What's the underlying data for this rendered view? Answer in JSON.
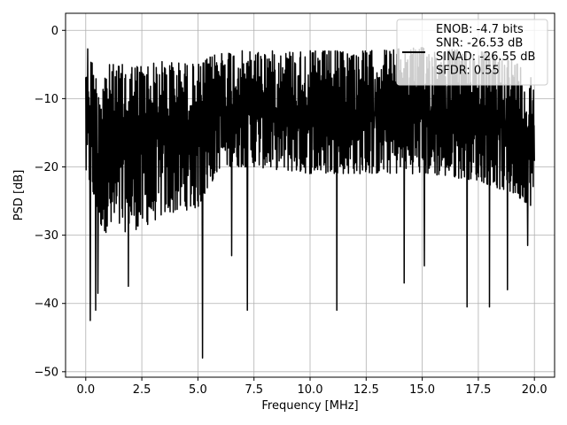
{
  "chart_data": {
    "type": "line",
    "xlabel": "Frequency [MHz]",
    "ylabel": "PSD [dB]",
    "xlim": [
      -0.9,
      20.9
    ],
    "ylim": [
      -50.8,
      2.5
    ],
    "xticks": [
      0.0,
      2.5,
      5.0,
      7.5,
      10.0,
      12.5,
      15.0,
      17.5,
      20.0
    ],
    "xtick_labels": [
      "0.0",
      "2.5",
      "5.0",
      "7.5",
      "10.0",
      "12.5",
      "15.0",
      "17.5",
      "20.0"
    ],
    "yticks": [
      0,
      -10,
      -20,
      -30,
      -40,
      -50
    ],
    "ytick_labels": [
      "0",
      "−10",
      "−20",
      "−30",
      "−40",
      "−50"
    ],
    "grid": true,
    "legend": {
      "placement": "top-right",
      "entries": [
        "ENOB: -4.7 bits",
        "SNR: -26.53 dB",
        "SINAD: -26.55 dB",
        "SFDR: 0.55"
      ]
    },
    "series": [
      {
        "color": "#000000",
        "x_range": [
          0.0,
          20.0
        ],
        "envelope": {
          "x": [
            0.0,
            0.5,
            1.0,
            2.5,
            3.5,
            5.0,
            6.0,
            7.5,
            10.0,
            12.5,
            15.0,
            17.5,
            19.0,
            20.0
          ],
          "y_high": [
            -1.0,
            -7.0,
            -5.0,
            -5.0,
            -4.5,
            -5.0,
            -3.0,
            -3.0,
            -3.0,
            -3.0,
            -2.5,
            -3.0,
            -4.0,
            -7.0
          ],
          "y_low": [
            -22.0,
            -28.0,
            -30.0,
            -29.0,
            -27.0,
            -26.0,
            -20.0,
            -20.0,
            -21.0,
            -21.0,
            -21.0,
            -22.0,
            -24.0,
            -26.0
          ]
        },
        "deep_dips": [
          {
            "x": 0.2,
            "y": -42.5
          },
          {
            "x": 0.45,
            "y": -41.0
          },
          {
            "x": 0.55,
            "y": -38.5
          },
          {
            "x": 1.9,
            "y": -37.5
          },
          {
            "x": 5.2,
            "y": -48.0
          },
          {
            "x": 7.2,
            "y": -41.0
          },
          {
            "x": 11.2,
            "y": -41.0
          },
          {
            "x": 14.2,
            "y": -37.0
          },
          {
            "x": 17.0,
            "y": -40.5
          },
          {
            "x": 18.0,
            "y": -40.5
          },
          {
            "x": 18.8,
            "y": -38.0
          },
          {
            "x": 5.2,
            "y": -34.0
          },
          {
            "x": 6.5,
            "y": -33.0
          },
          {
            "x": 15.1,
            "y": -34.5
          },
          {
            "x": 19.7,
            "y": -31.5
          }
        ]
      }
    ]
  }
}
